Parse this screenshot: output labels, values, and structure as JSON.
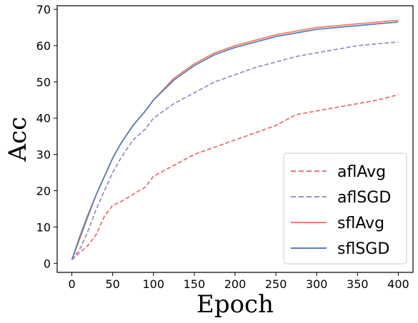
{
  "chart_data": {
    "type": "line",
    "xlabel": "Epoch",
    "ylabel": "Acc",
    "xlim": [
      -18,
      418
    ],
    "ylim": [
      -2.5,
      71
    ],
    "xticks": [
      0,
      50,
      100,
      150,
      200,
      250,
      300,
      350,
      400
    ],
    "yticks": [
      0,
      10,
      20,
      30,
      40,
      50,
      60,
      70
    ],
    "grid": false,
    "legend_position": "lower-right",
    "series": [
      {
        "name": "aflAvg",
        "color": "#e57373",
        "dash": "dashed",
        "x": [
          0,
          10,
          20,
          30,
          40,
          50,
          60,
          75,
          90,
          100,
          125,
          150,
          175,
          200,
          225,
          250,
          275,
          300,
          325,
          350,
          375,
          400
        ],
        "y": [
          1,
          3,
          5,
          8,
          13,
          16,
          17,
          19,
          21,
          24,
          27,
          30,
          32,
          34,
          36,
          38,
          41,
          42,
          43,
          44,
          45,
          46.5
        ]
      },
      {
        "name": "aflSGD",
        "color": "#9b8fc4",
        "dash": "dashed",
        "x": [
          0,
          10,
          20,
          30,
          40,
          50,
          60,
          75,
          90,
          100,
          125,
          150,
          175,
          200,
          225,
          250,
          275,
          300,
          325,
          350,
          375,
          400
        ],
        "y": [
          1,
          4,
          9,
          15,
          20,
          25,
          29,
          34,
          37,
          40,
          44,
          47,
          50,
          52,
          54,
          55.5,
          57,
          58,
          59,
          60,
          60.5,
          61
        ]
      },
      {
        "name": "sflAvg",
        "color": "#f08068",
        "dash": "solid",
        "x": [
          0,
          10,
          20,
          30,
          40,
          50,
          60,
          75,
          90,
          100,
          125,
          150,
          175,
          200,
          225,
          250,
          275,
          300,
          325,
          350,
          375,
          400
        ],
        "y": [
          1,
          7,
          13,
          19,
          24,
          29,
          33,
          38,
          42,
          45,
          51,
          55,
          58,
          60,
          61.5,
          63,
          64,
          65,
          65.5,
          66,
          66.5,
          67
        ]
      },
      {
        "name": "sflSGD",
        "color": "#5b7fb0",
        "dash": "solid",
        "x": [
          0,
          10,
          20,
          30,
          40,
          50,
          60,
          75,
          90,
          100,
          125,
          150,
          175,
          200,
          225,
          250,
          275,
          300,
          325,
          350,
          375,
          400
        ],
        "y": [
          1,
          7.5,
          13.5,
          19,
          24,
          29,
          33,
          38,
          42,
          45,
          50.5,
          54.5,
          57.5,
          59.5,
          61,
          62.5,
          63.5,
          64.5,
          65,
          65.5,
          66,
          66.5
        ]
      }
    ]
  }
}
